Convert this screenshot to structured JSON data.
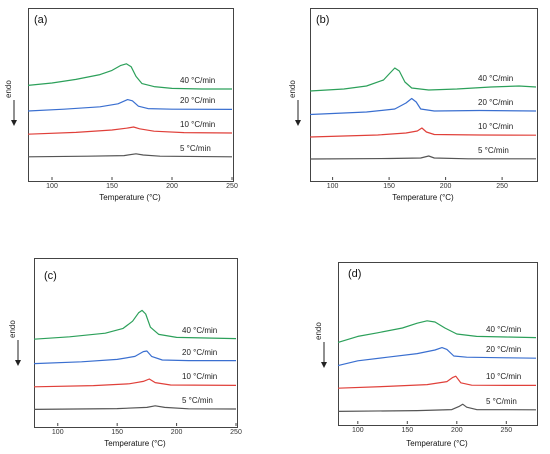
{
  "chart_data": [
    {
      "type": "line",
      "panel_label": "(a)",
      "ylabel": "endo",
      "xlabel": "Temperature (°C)",
      "xlim": [
        80,
        250
      ],
      "xticks": [
        100,
        150,
        200,
        250
      ],
      "series": [
        {
          "name": "40 °C/min",
          "color": "#2ca05a",
          "offset": 3,
          "points": [
            [
              80,
              0.55
            ],
            [
              100,
              0.75
            ],
            [
              120,
              1.05
            ],
            [
              140,
              1.45
            ],
            [
              150,
              1.8
            ],
            [
              157,
              2.2
            ],
            [
              162,
              2.35
            ],
            [
              166,
              2.1
            ],
            [
              170,
              1.3
            ],
            [
              175,
              0.7
            ],
            [
              185,
              0.45
            ],
            [
              200,
              0.3
            ],
            [
              225,
              0.25
            ],
            [
              250,
              0.25
            ]
          ]
        },
        {
          "name": "20 °C/min",
          "color": "#3a6fd0",
          "offset": 2,
          "points": [
            [
              80,
              0.25
            ],
            [
              110,
              0.4
            ],
            [
              140,
              0.6
            ],
            [
              155,
              0.85
            ],
            [
              163,
              1.2
            ],
            [
              167,
              1.1
            ],
            [
              172,
              0.65
            ],
            [
              180,
              0.45
            ],
            [
              200,
              0.4
            ],
            [
              250,
              0.38
            ]
          ]
        },
        {
          "name": "10 °C/min",
          "color": "#e0403a",
          "offset": 1,
          "points": [
            [
              80,
              0.15
            ],
            [
              120,
              0.3
            ],
            [
              150,
              0.5
            ],
            [
              162,
              0.65
            ],
            [
              168,
              0.75
            ],
            [
              173,
              0.6
            ],
            [
              185,
              0.4
            ],
            [
              210,
              0.28
            ],
            [
              250,
              0.25
            ]
          ]
        },
        {
          "name": "5 °C/min",
          "color": "#555555",
          "offset": 0,
          "points": [
            [
              80,
              0.1
            ],
            [
              130,
              0.15
            ],
            [
              160,
              0.2
            ],
            [
              170,
              0.35
            ],
            [
              176,
              0.25
            ],
            [
              190,
              0.15
            ],
            [
              250,
              0.1
            ]
          ]
        }
      ]
    },
    {
      "type": "line",
      "panel_label": "(b)",
      "ylabel": "endo",
      "xlabel": "Temperature (°C)",
      "xlim": [
        80,
        280
      ],
      "xticks": [
        100,
        150,
        200,
        250
      ],
      "series": [
        {
          "name": "40 °C/min",
          "color": "#2ca05a",
          "offset": 3,
          "points": [
            [
              80,
              0.3
            ],
            [
              110,
              0.5
            ],
            [
              130,
              0.8
            ],
            [
              145,
              1.4
            ],
            [
              150,
              2.0
            ],
            [
              155,
              2.6
            ],
            [
              159,
              2.3
            ],
            [
              164,
              1.2
            ],
            [
              170,
              0.6
            ],
            [
              185,
              0.4
            ],
            [
              210,
              0.5
            ],
            [
              240,
              0.7
            ],
            [
              265,
              0.8
            ],
            [
              280,
              0.7
            ]
          ]
        },
        {
          "name": "20 °C/min",
          "color": "#3a6fd0",
          "offset": 2,
          "points": [
            [
              80,
              0.15
            ],
            [
              130,
              0.4
            ],
            [
              155,
              0.7
            ],
            [
              165,
              1.3
            ],
            [
              170,
              1.75
            ],
            [
              174,
              1.4
            ],
            [
              178,
              0.7
            ],
            [
              190,
              0.5
            ],
            [
              230,
              0.55
            ],
            [
              280,
              0.5
            ]
          ]
        },
        {
          "name": "10 °C/min",
          "color": "#e0403a",
          "offset": 1,
          "points": [
            [
              80,
              0.1
            ],
            [
              140,
              0.3
            ],
            [
              165,
              0.5
            ],
            [
              175,
              0.7
            ],
            [
              179,
              1.0
            ],
            [
              183,
              0.6
            ],
            [
              190,
              0.35
            ],
            [
              230,
              0.3
            ],
            [
              280,
              0.28
            ]
          ]
        },
        {
          "name": "5 °C/min",
          "color": "#555555",
          "offset": 0,
          "points": [
            [
              80,
              0.1
            ],
            [
              150,
              0.15
            ],
            [
              178,
              0.2
            ],
            [
              185,
              0.4
            ],
            [
              190,
              0.2
            ],
            [
              220,
              0.12
            ],
            [
              280,
              0.12
            ]
          ]
        }
      ]
    },
    {
      "type": "line",
      "panel_label": "(c)",
      "ylabel": "endo",
      "xlabel": "Temperature (°C)",
      "xlim": [
        80,
        250
      ],
      "xticks": [
        100,
        150,
        200,
        250
      ],
      "series": [
        {
          "name": "40 °C/min",
          "color": "#2ca05a",
          "offset": 3,
          "points": [
            [
              80,
              0.4
            ],
            [
              110,
              0.6
            ],
            [
              140,
              0.9
            ],
            [
              155,
              1.3
            ],
            [
              163,
              1.9
            ],
            [
              168,
              2.6
            ],
            [
              171,
              2.8
            ],
            [
              174,
              2.5
            ],
            [
              178,
              1.4
            ],
            [
              185,
              0.8
            ],
            [
              200,
              0.55
            ],
            [
              225,
              0.5
            ],
            [
              250,
              0.45
            ]
          ]
        },
        {
          "name": "20 °C/min",
          "color": "#3a6fd0",
          "offset": 2,
          "points": [
            [
              80,
              0.2
            ],
            [
              120,
              0.35
            ],
            [
              150,
              0.55
            ],
            [
              165,
              0.8
            ],
            [
              172,
              1.2
            ],
            [
              175,
              1.25
            ],
            [
              179,
              0.8
            ],
            [
              188,
              0.5
            ],
            [
              210,
              0.45
            ],
            [
              250,
              0.45
            ]
          ]
        },
        {
          "name": "10 °C/min",
          "color": "#e0403a",
          "offset": 1,
          "points": [
            [
              80,
              0.1
            ],
            [
              130,
              0.2
            ],
            [
              160,
              0.35
            ],
            [
              172,
              0.55
            ],
            [
              177,
              0.75
            ],
            [
              182,
              0.45
            ],
            [
              195,
              0.25
            ],
            [
              250,
              0.22
            ]
          ]
        },
        {
          "name": "5 °C/min",
          "color": "#555555",
          "offset": 0,
          "points": [
            [
              80,
              0.05
            ],
            [
              150,
              0.12
            ],
            [
              175,
              0.22
            ],
            [
              182,
              0.35
            ],
            [
              190,
              0.22
            ],
            [
              210,
              0.1
            ],
            [
              250,
              0.08
            ]
          ]
        }
      ]
    },
    {
      "type": "line",
      "panel_label": "(d)",
      "ylabel": "endo",
      "xlabel": "Temperature (°C)",
      "xlim": [
        80,
        280
      ],
      "xticks": [
        100,
        150,
        200,
        250
      ],
      "series": [
        {
          "name": "40 °C/min",
          "color": "#2ca05a",
          "offset": 3,
          "points": [
            [
              80,
              0.3
            ],
            [
              100,
              0.8
            ],
            [
              120,
              1.1
            ],
            [
              145,
              1.5
            ],
            [
              160,
              1.9
            ],
            [
              170,
              2.1
            ],
            [
              178,
              2.0
            ],
            [
              188,
              1.5
            ],
            [
              200,
              1.0
            ],
            [
              220,
              0.8
            ],
            [
              250,
              0.75
            ],
            [
              280,
              0.7
            ]
          ]
        },
        {
          "name": "20 °C/min",
          "color": "#3a6fd0",
          "offset": 2,
          "points": [
            [
              80,
              0.2
            ],
            [
              100,
              0.6
            ],
            [
              130,
              0.9
            ],
            [
              160,
              1.2
            ],
            [
              178,
              1.5
            ],
            [
              185,
              1.7
            ],
            [
              190,
              1.55
            ],
            [
              197,
              1.0
            ],
            [
              210,
              0.9
            ],
            [
              250,
              0.85
            ],
            [
              280,
              0.82
            ]
          ]
        },
        {
          "name": "10 °C/min",
          "color": "#e0403a",
          "offset": 1,
          "points": [
            [
              80,
              0.15
            ],
            [
              130,
              0.3
            ],
            [
              170,
              0.45
            ],
            [
              190,
              0.7
            ],
            [
              196,
              1.05
            ],
            [
              199,
              1.15
            ],
            [
              204,
              0.6
            ],
            [
              215,
              0.4
            ],
            [
              250,
              0.38
            ],
            [
              280,
              0.38
            ]
          ]
        },
        {
          "name": "5 °C/min",
          "color": "#555555",
          "offset": 0,
          "points": [
            [
              80,
              0.05
            ],
            [
              160,
              0.12
            ],
            [
              195,
              0.2
            ],
            [
              202,
              0.45
            ],
            [
              206,
              0.65
            ],
            [
              210,
              0.4
            ],
            [
              220,
              0.2
            ],
            [
              280,
              0.18
            ]
          ]
        }
      ]
    }
  ]
}
